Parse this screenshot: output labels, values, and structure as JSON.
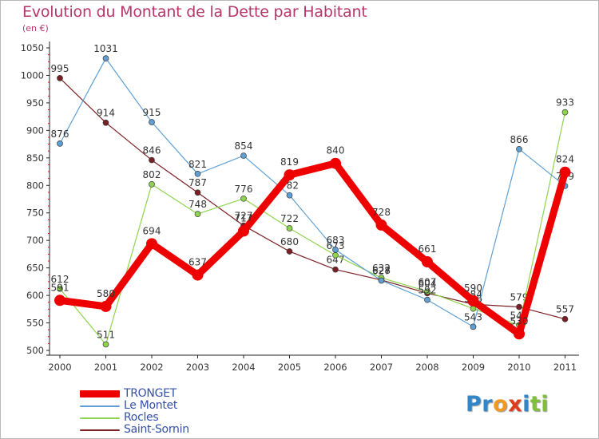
{
  "title": "Evolution du Montant de la Dette par Habitant",
  "unit": "(en €)",
  "colors": {
    "title": "#b5366a",
    "axis_text": "#333333",
    "legend_text": "#3550a6"
  },
  "chart_data": {
    "type": "line",
    "title": "Evolution du Montant de la Dette par Habitant",
    "ylabel": "(en €)",
    "xlabel": "",
    "categories": [
      "2000",
      "2001",
      "2002",
      "2003",
      "2004",
      "2005",
      "2006",
      "2007",
      "2008",
      "2009",
      "2010",
      "2011"
    ],
    "ylim": [
      500,
      1050
    ],
    "yticks": [
      500,
      550,
      600,
      650,
      700,
      750,
      800,
      850,
      900,
      950,
      1000,
      1050
    ],
    "grid": false,
    "legend": "bottom-left",
    "series": [
      {
        "name": "Saint-Sornin",
        "color": "#7a1f24",
        "width": 1.2,
        "marker": 3.5,
        "values": [
          995,
          914,
          846,
          787,
          727,
          680,
          647,
          628,
          604,
          584,
          579,
          557
        ],
        "labels": [
          "995",
          "914",
          "846",
          "787",
          "727",
          "680",
          "647",
          "628",
          "604",
          "584",
          "579",
          "557"
        ]
      },
      {
        "name": "Rocles",
        "color": "#8fd44e",
        "width": 1.2,
        "marker": 3.5,
        "values": [
          612,
          511,
          802,
          748,
          776,
          722,
          673,
          632,
          607,
          576,
          546,
          933
        ],
        "labels": [
          "612",
          "511",
          "802",
          "748",
          "776",
          "722",
          "673",
          "632",
          "607",
          "576",
          "546",
          "933"
        ]
      },
      {
        "name": "Le Montet",
        "color": "#5f9fd3",
        "width": 1.2,
        "marker": 3.5,
        "values": [
          876,
          1031,
          915,
          821,
          854,
          782,
          683,
          627,
          592,
          543,
          866,
          799
        ],
        "labels": [
          "876",
          "1031",
          "915",
          "821",
          "854",
          "782",
          "683",
          "627",
          "592",
          "543",
          "866",
          "799"
        ]
      },
      {
        "name": "TRONGET",
        "color": "#ee0000",
        "width": 9,
        "marker": 7,
        "values": [
          591,
          580,
          694,
          637,
          717,
          819,
          840,
          728,
          661,
          590,
          530,
          824
        ],
        "labels": [
          "591",
          "580",
          "694",
          "637",
          "717",
          "819",
          "840",
          "728",
          "661",
          "590",
          "530",
          "824"
        ]
      }
    ]
  },
  "legend_items": [
    {
      "name": "TRONGET",
      "color": "#ee0000"
    },
    {
      "name": "Le Montet",
      "color": "#5f9fd3"
    },
    {
      "name": "Rocles",
      "color": "#8fd44e"
    },
    {
      "name": "Saint-Sornin",
      "color": "#7a1f24"
    }
  ],
  "logo": {
    "letters": [
      {
        "ch": "P",
        "color": "#2f86c8"
      },
      {
        "ch": "r",
        "color": "#2f86c8"
      },
      {
        "ch": "o",
        "color": "#f29a1f"
      },
      {
        "ch": "x",
        "color": "#e23b1c"
      },
      {
        "ch": "i",
        "color": "#2f86c8"
      },
      {
        "ch": "t",
        "color": "#7fbf3a"
      },
      {
        "ch": "i",
        "color": "#7fbf3a"
      }
    ]
  }
}
